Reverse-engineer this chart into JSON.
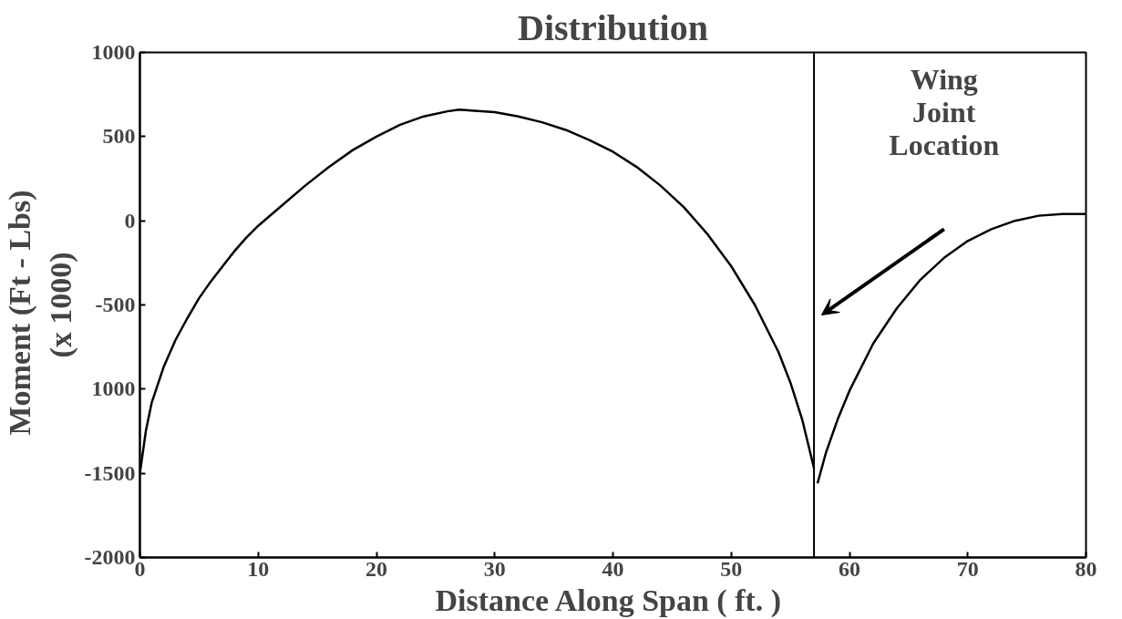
{
  "chart_data": {
    "type": "line",
    "title": "Distribution",
    "xlabel": "Distance Along Span  ( ft. )",
    "ylabel": "Moment   (Ft - Lbs)\n(x 1000)",
    "xlim": [
      0,
      80
    ],
    "xticks": [
      0,
      10,
      20,
      30,
      40,
      50,
      60,
      70,
      80
    ],
    "ylim": [
      -2000,
      1000
    ],
    "yticks": [
      1000,
      500,
      0,
      -500,
      {
        "value": -1000,
        "label": "1000"
      },
      -1500,
      -2000
    ],
    "grid": false,
    "marker": "none",
    "line_style": "solid",
    "series": [
      {
        "color": "#000000",
        "x": [
          0,
          0.5,
          1,
          2,
          3,
          4,
          5,
          6,
          7,
          8,
          9,
          10,
          12,
          14,
          16,
          18,
          20,
          22,
          24,
          26,
          27,
          28,
          30,
          32,
          34,
          36,
          38,
          40,
          42,
          44,
          46,
          48,
          50,
          52,
          54,
          55,
          56,
          57
        ],
        "values": [
          -1500,
          -1250,
          -1080,
          -870,
          -710,
          -580,
          -460,
          -360,
          -270,
          -180,
          -100,
          -30,
          90,
          210,
          320,
          420,
          500,
          570,
          620,
          650,
          660,
          655,
          645,
          620,
          585,
          540,
          480,
          410,
          320,
          210,
          80,
          -80,
          -270,
          -500,
          -780,
          -960,
          -1180,
          -1470
        ]
      },
      {
        "color": "#000000",
        "x": [
          57.3,
          58,
          59,
          60,
          62,
          64,
          66,
          68,
          70,
          72,
          74,
          76,
          78,
          80
        ],
        "values": [
          -1560,
          -1380,
          -1180,
          -1010,
          -730,
          -520,
          -350,
          -220,
          -120,
          -50,
          0,
          30,
          40,
          40
        ]
      }
    ],
    "ref_lines": [
      {
        "axis": "x",
        "value": 57,
        "color": "#000000"
      }
    ],
    "annotations": [
      "Wing\nJoint\nLocation"
    ]
  }
}
